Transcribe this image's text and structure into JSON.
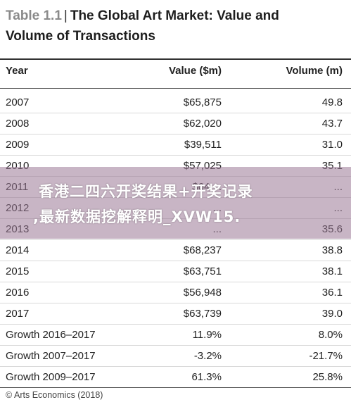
{
  "table": {
    "label": "Table 1.1",
    "separator": "|",
    "title_line1": "The Global Art Market: Value and",
    "title_line2": "Volume of Transactions",
    "headers": {
      "year": "Year",
      "value": "Value ($m)",
      "volume": "Volume (m)"
    },
    "rows": [
      {
        "year": "2007",
        "value": "$65,875",
        "volume": "49.8"
      },
      {
        "year": "2008",
        "value": "$62,020",
        "volume": "43.7"
      },
      {
        "year": "2009",
        "value": "$39,511",
        "volume": "31.0"
      },
      {
        "year": "2010",
        "value": "$57,025",
        "volume": "35.1"
      },
      {
        "year": "2011",
        "value": "$64,...",
        "volume": "..."
      },
      {
        "year": "2012",
        "value": "...",
        "volume": "..."
      },
      {
        "year": "2013",
        "value": "...",
        "volume": "35.6"
      },
      {
        "year": "2014",
        "value": "$68,237",
        "volume": "38.8"
      },
      {
        "year": "2015",
        "value": "$63,751",
        "volume": "38.1"
      },
      {
        "year": "2016",
        "value": "$56,948",
        "volume": "36.1"
      },
      {
        "year": "2017",
        "value": "$63,739",
        "volume": "39.0"
      },
      {
        "year": "Growth 2016–2017",
        "value": "11.9%",
        "volume": "8.0%"
      },
      {
        "year": "Growth 2007–2017",
        "value": "-3.2%",
        "volume": "-21.7%"
      },
      {
        "year": "Growth 2009–2017",
        "value": "61.3%",
        "volume": "25.8%"
      }
    ]
  },
  "footer": {
    "source": "© Arts Economics (2018)"
  },
  "overlay": {
    "line1": "香港二四六开奖结果+开奖记录",
    "line2": ",最新数据挖解释明_XVW15."
  }
}
